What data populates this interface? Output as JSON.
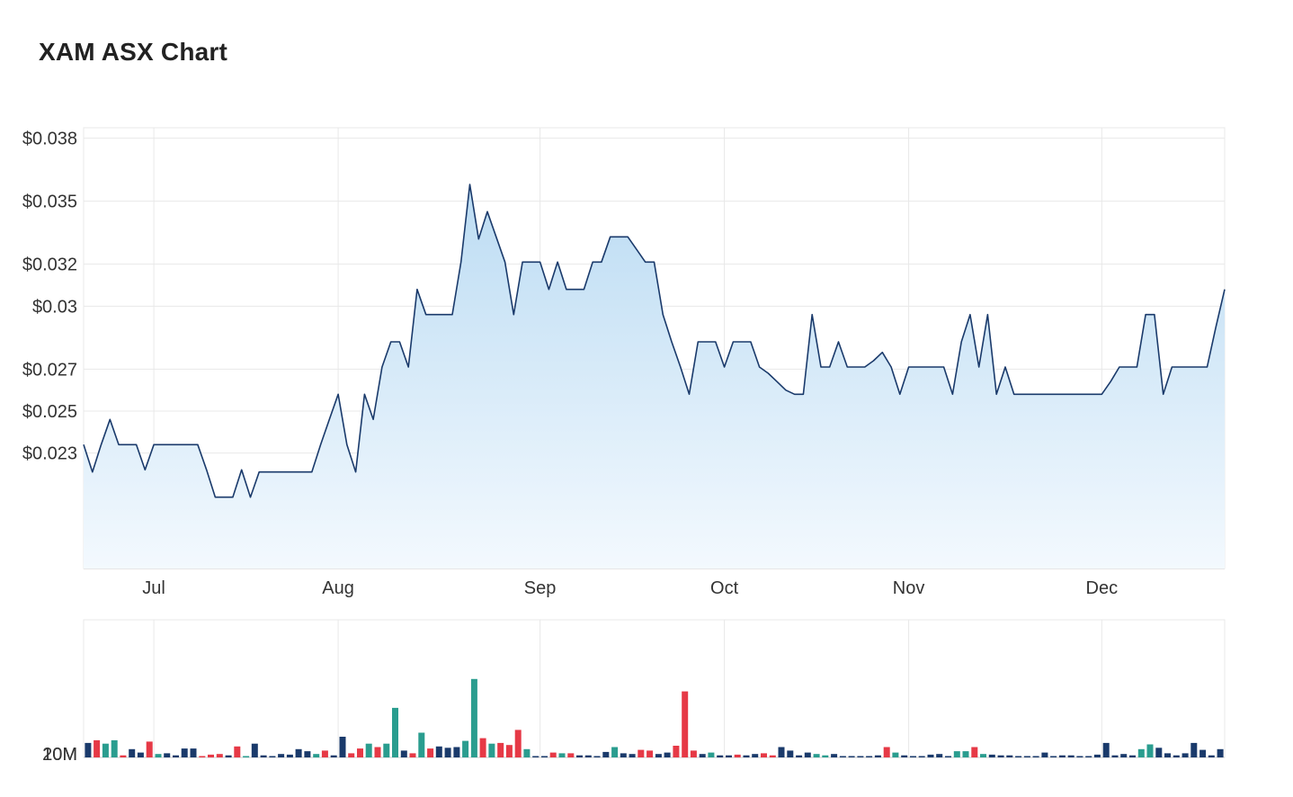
{
  "title": "XAM ASX Chart",
  "colors": {
    "line": "#1a3a6b",
    "area_top": "#bcdcf3",
    "area_bottom": "#f3f9fe",
    "grid": "#e8e8e8",
    "volume_navy": "#1a3a6b",
    "volume_teal": "#2a9d8f",
    "volume_red": "#e63946"
  },
  "chart_data": [
    {
      "type": "area",
      "title": "",
      "y_tick_labels": [
        "$0.038",
        "$0.035",
        "$0.032",
        "$0.03",
        "$0.027",
        "$0.025",
        "$0.023"
      ],
      "y_ticks": [
        0.038,
        0.035,
        0.032,
        0.03,
        0.027,
        0.025,
        0.023
      ],
      "x_tick_labels": [
        "Jul",
        "Aug",
        "Sep",
        "Oct",
        "Nov",
        "Dec"
      ],
      "x_tick_index": [
        8,
        29,
        52,
        73,
        94,
        116
      ],
      "ylim": [
        0.0175,
        0.0385
      ],
      "grid": true,
      "values": [
        0.0234,
        0.0221,
        0.0234,
        0.0246,
        0.0234,
        0.0234,
        0.0234,
        0.0222,
        0.0234,
        0.0234,
        0.0234,
        0.0234,
        0.0234,
        0.0234,
        0.0222,
        0.0209,
        0.0209,
        0.0209,
        0.0222,
        0.0209,
        0.0221,
        0.0221,
        0.0221,
        0.0221,
        0.0221,
        0.0221,
        0.0221,
        0.0234,
        0.0246,
        0.0258,
        0.0234,
        0.0221,
        0.0258,
        0.0246,
        0.0271,
        0.0283,
        0.0283,
        0.0271,
        0.0308,
        0.0296,
        0.0296,
        0.0296,
        0.0296,
        0.0321,
        0.0358,
        0.0332,
        0.0345,
        0.0333,
        0.0321,
        0.0296,
        0.0321,
        0.0321,
        0.0321,
        0.0308,
        0.0321,
        0.0308,
        0.0308,
        0.0308,
        0.0321,
        0.0321,
        0.0333,
        0.0333,
        0.0333,
        0.0327,
        0.0321,
        0.0321,
        0.0296,
        0.0283,
        0.0271,
        0.0258,
        0.0283,
        0.0283,
        0.0283,
        0.0271,
        0.0283,
        0.0283,
        0.0283,
        0.0271,
        0.0268,
        0.0264,
        0.026,
        0.0258,
        0.0258,
        0.0296,
        0.0271,
        0.0271,
        0.0283,
        0.0271,
        0.0271,
        0.0271,
        0.0274,
        0.0278,
        0.0271,
        0.0258,
        0.0271,
        0.0271,
        0.0271,
        0.0271,
        0.0271,
        0.0258,
        0.0283,
        0.0296,
        0.0271,
        0.0296,
        0.0258,
        0.0271,
        0.0258,
        0.0258,
        0.0258,
        0.0258,
        0.0258,
        0.0258,
        0.0258,
        0.0258,
        0.0258,
        0.0258,
        0.0258,
        0.0264,
        0.0271,
        0.0271,
        0.0271,
        0.0296,
        0.0296,
        0.0258,
        0.0271,
        0.0271,
        0.0271,
        0.0271,
        0.0271,
        0.029,
        0.0308
      ]
    },
    {
      "type": "bar",
      "title": "",
      "y_tick_labels": [
        "20M",
        "10M"
      ],
      "y_ticks": [
        20000000,
        10000000
      ],
      "ylim": [
        0,
        20000000
      ],
      "grid": true,
      "values": [
        2.1,
        2.5,
        2,
        2.5,
        0.3,
        1.2,
        0.7,
        2.3,
        0.5,
        0.6,
        0.3,
        1.3,
        1.3,
        0.2,
        0.4,
        0.5,
        0.3,
        1.6,
        0.2,
        2,
        0.3,
        0.2,
        0.5,
        0.4,
        1.2,
        0.9,
        0.5,
        1,
        0.3,
        3,
        0.6,
        1.3,
        2,
        1.5,
        2,
        7.2,
        1,
        0.6,
        3.6,
        1.3,
        1.6,
        1.4,
        1.5,
        2.4,
        11.4,
        2.8,
        2,
        2.1,
        1.8,
        4,
        1.2,
        0.2,
        0.2,
        0.7,
        0.6,
        0.6,
        0.3,
        0.3,
        0.2,
        0.8,
        1.5,
        0.6,
        0.5,
        1.1,
        1,
        0.5,
        0.7,
        1.7,
        9.6,
        1,
        0.5,
        0.7,
        0.3,
        0.3,
        0.4,
        0.3,
        0.5,
        0.6,
        0.3,
        1.5,
        1,
        0.3,
        0.7,
        0.5,
        0.3,
        0.5,
        0.2,
        0.2,
        0.2,
        0.2,
        0.3,
        1.5,
        0.7,
        0.3,
        0.2,
        0.2,
        0.4,
        0.5,
        0.2,
        0.9,
        0.9,
        1.5,
        0.5,
        0.4,
        0.3,
        0.3,
        0.2,
        0.2,
        0.2,
        0.7,
        0.2,
        0.3,
        0.3,
        0.2,
        0.2,
        0.4,
        2.1,
        0.3,
        0.5,
        0.3,
        1.2,
        1.9,
        1.4,
        0.6,
        0.3,
        0.6,
        2.1,
        1.1,
        0.3,
        1.2
      ],
      "value_unit": "M",
      "bar_colors": [
        "navy",
        "red",
        "teal",
        "teal",
        "red",
        "navy",
        "navy",
        "red",
        "teal",
        "navy",
        "navy",
        "navy",
        "navy",
        "red",
        "red",
        "red",
        "navy",
        "red",
        "teal",
        "navy",
        "navy",
        "navy",
        "navy",
        "navy",
        "navy",
        "navy",
        "teal",
        "red",
        "navy",
        "navy",
        "red",
        "red",
        "teal",
        "red",
        "teal",
        "teal",
        "navy",
        "red",
        "teal",
        "red",
        "navy",
        "navy",
        "navy",
        "teal",
        "teal",
        "red",
        "teal",
        "red",
        "red",
        "red",
        "teal",
        "navy",
        "navy",
        "red",
        "teal",
        "red",
        "navy",
        "navy",
        "navy",
        "navy",
        "teal",
        "navy",
        "navy",
        "red",
        "red",
        "navy",
        "navy",
        "red",
        "red",
        "red",
        "navy",
        "teal",
        "navy",
        "navy",
        "red",
        "navy",
        "navy",
        "red",
        "red",
        "navy",
        "navy",
        "navy",
        "navy",
        "teal",
        "teal",
        "navy",
        "navy",
        "navy",
        "navy",
        "navy",
        "navy",
        "red",
        "teal",
        "navy",
        "navy",
        "navy",
        "navy",
        "navy",
        "navy",
        "teal",
        "teal",
        "red",
        "teal",
        "navy",
        "navy",
        "navy",
        "navy",
        "navy",
        "navy",
        "navy",
        "navy",
        "navy",
        "navy",
        "navy",
        "navy",
        "navy",
        "navy",
        "navy",
        "navy",
        "navy",
        "teal",
        "teal",
        "navy",
        "navy",
        "navy",
        "navy",
        "navy",
        "navy",
        "navy",
        "navy"
      ]
    }
  ]
}
